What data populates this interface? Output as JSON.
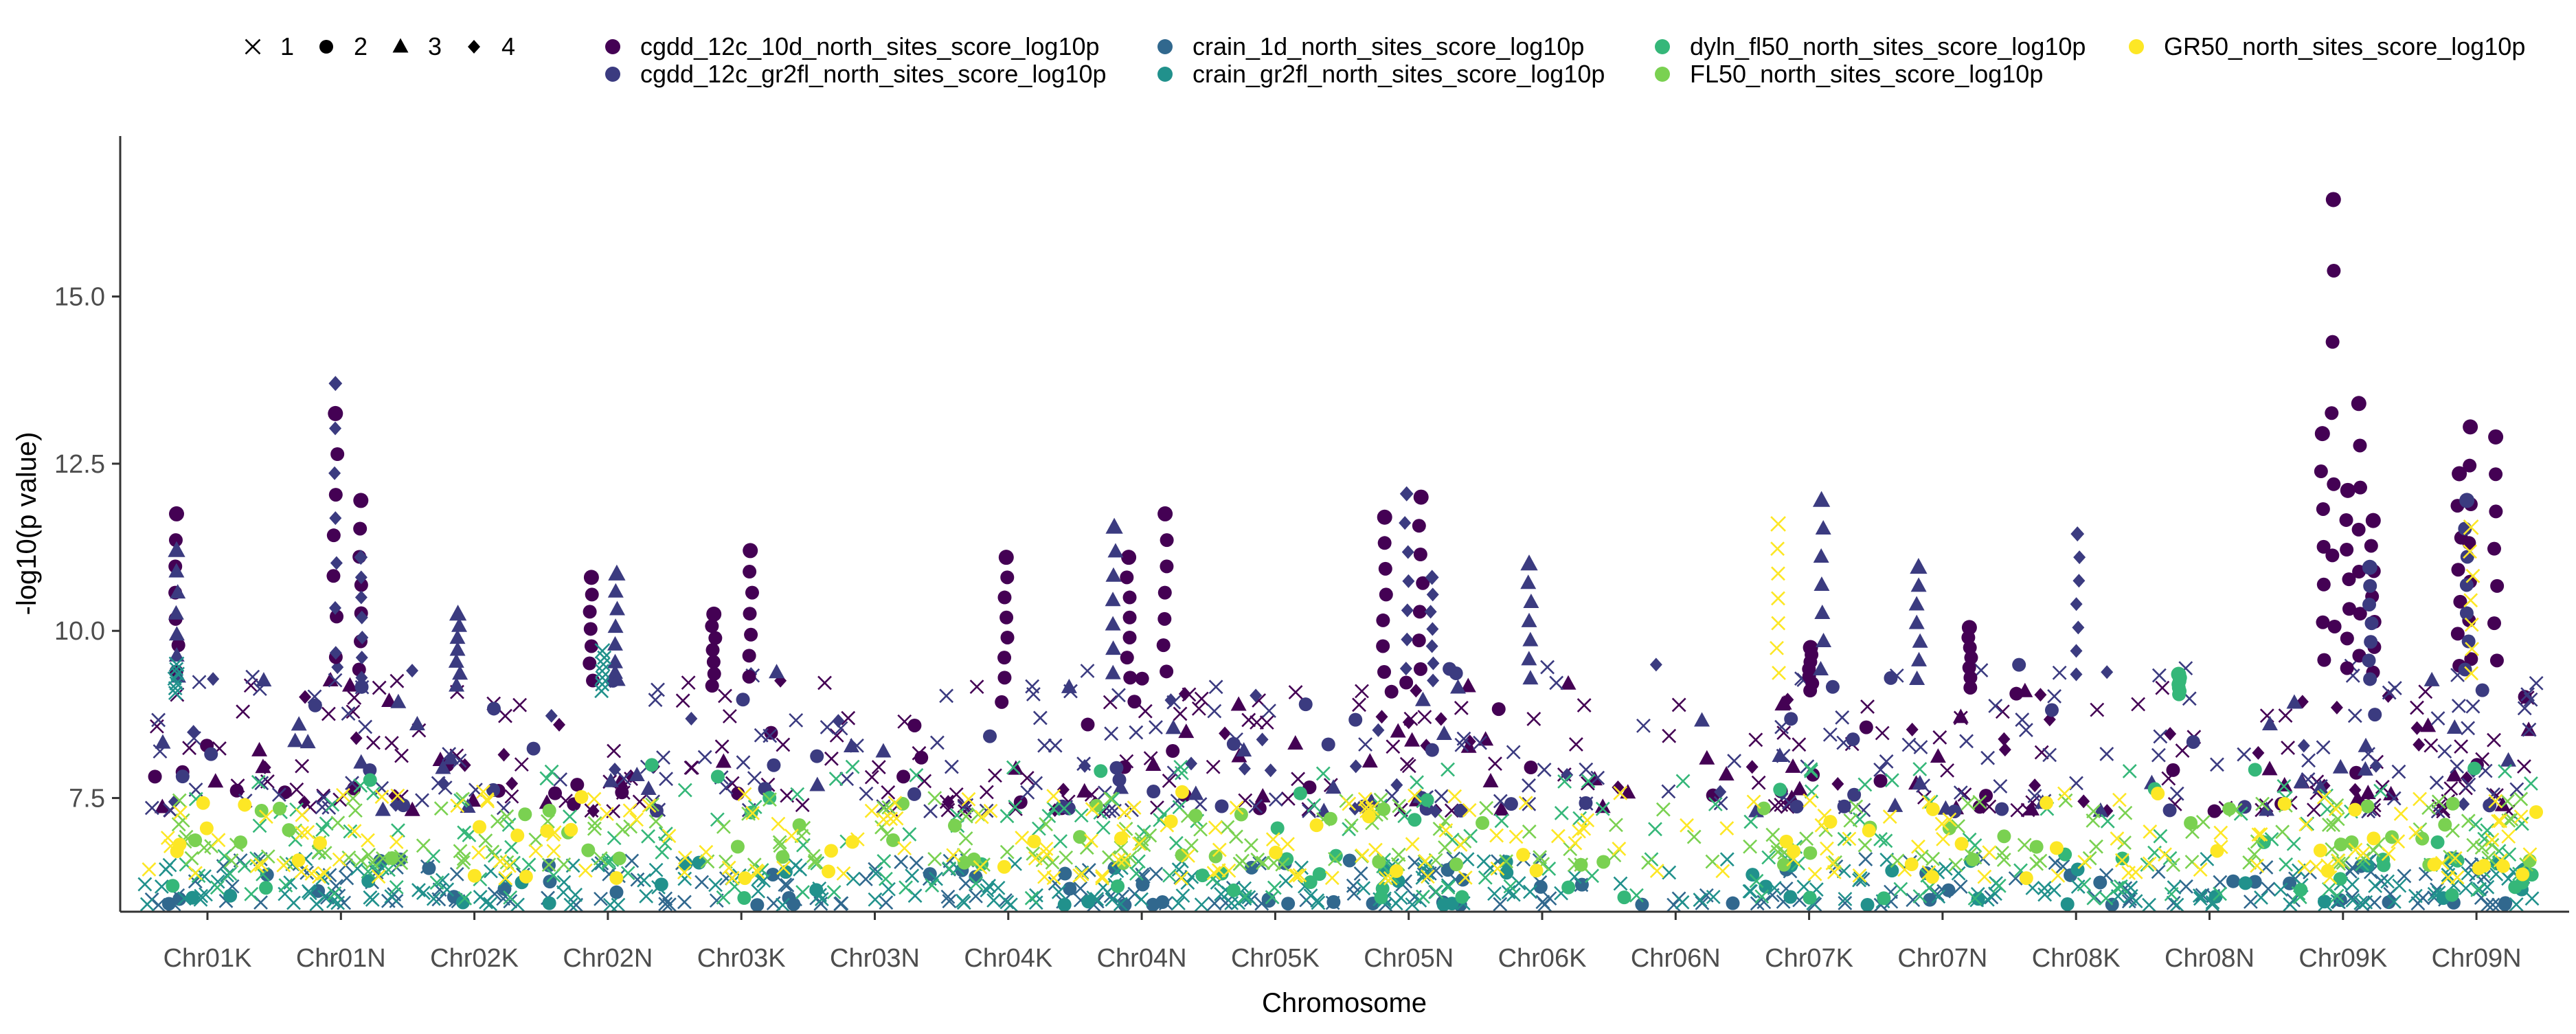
{
  "chart_data": {
    "type": "scatter",
    "title": "",
    "xlabel": "Chromosome",
    "ylabel": "-log10(p value)",
    "ylim": [
      5.8,
      17.4
    ],
    "yticks": [
      "7.5",
      "10.0",
      "12.5",
      "15.0"
    ],
    "ytick_values": [
      7.5,
      10.0,
      12.5,
      15.0
    ],
    "grid": false,
    "legend_position": "top",
    "categories": [
      "Chr01K",
      "Chr01N",
      "Chr02K",
      "Chr02N",
      "Chr03K",
      "Chr03N",
      "Chr04K",
      "Chr04N",
      "Chr05K",
      "Chr05N",
      "Chr06K",
      "Chr06N",
      "Chr07K",
      "Chr07N",
      "Chr08K",
      "Chr08N",
      "Chr09K",
      "Chr09N"
    ],
    "shape_legend": [
      {
        "label": "1",
        "shape": "cross"
      },
      {
        "label": "2",
        "shape": "circle"
      },
      {
        "label": "3",
        "shape": "triangle"
      },
      {
        "label": "4",
        "shape": "diamond"
      }
    ],
    "series": [
      {
        "name": "cgdd_12c_10d_north_sites_score_log10p",
        "color": "#440154",
        "base_range": [
          7.3,
          9.3
        ],
        "peaks": [
          {
            "chr": "Chr01K",
            "y": 11.75,
            "shape": "circle"
          },
          {
            "chr": "Chr01N",
            "y": 13.25,
            "shape": "circle"
          },
          {
            "chr": "Chr01N",
            "y": 11.95,
            "shape": "circle"
          },
          {
            "chr": "Chr02N",
            "y": 10.8,
            "shape": "circle"
          },
          {
            "chr": "Chr03K",
            "y": 11.2,
            "shape": "circle"
          },
          {
            "chr": "Chr03K",
            "y": 10.25,
            "shape": "circle"
          },
          {
            "chr": "Chr04K",
            "y": 11.1,
            "shape": "circle"
          },
          {
            "chr": "Chr04N",
            "y": 11.75,
            "shape": "circle"
          },
          {
            "chr": "Chr04N",
            "y": 11.1,
            "shape": "circle"
          },
          {
            "chr": "Chr05N",
            "y": 12.0,
            "shape": "circle"
          },
          {
            "chr": "Chr05N",
            "y": 11.7,
            "shape": "circle"
          },
          {
            "chr": "Chr07K",
            "y": 9.75,
            "shape": "circle"
          },
          {
            "chr": "Chr07N",
            "y": 10.05,
            "shape": "circle"
          },
          {
            "chr": "Chr09K",
            "y": 16.45,
            "shape": "circle"
          },
          {
            "chr": "Chr09K",
            "y": 13.4,
            "shape": "circle"
          },
          {
            "chr": "Chr09K",
            "y": 12.95,
            "shape": "circle"
          },
          {
            "chr": "Chr09K",
            "y": 12.1,
            "shape": "circle"
          },
          {
            "chr": "Chr09K",
            "y": 11.65,
            "shape": "circle"
          },
          {
            "chr": "Chr09N",
            "y": 13.05,
            "shape": "circle"
          },
          {
            "chr": "Chr09N",
            "y": 12.9,
            "shape": "circle"
          },
          {
            "chr": "Chr09N",
            "y": 12.35,
            "shape": "circle"
          }
        ]
      },
      {
        "name": "cgdd_12c_gr2fl_north_sites_score_log10p",
        "color": "#3b3b80",
        "base_range": [
          7.3,
          9.5
        ],
        "peaks": [
          {
            "chr": "Chr01K",
            "y": 11.2,
            "shape": "triangle"
          },
          {
            "chr": "Chr01N",
            "y": 13.7,
            "shape": "diamond"
          },
          {
            "chr": "Chr01N",
            "y": 11.1,
            "shape": "diamond"
          },
          {
            "chr": "Chr02K",
            "y": 10.25,
            "shape": "triangle"
          },
          {
            "chr": "Chr02N",
            "y": 10.85,
            "shape": "triangle"
          },
          {
            "chr": "Chr04N",
            "y": 11.55,
            "shape": "triangle"
          },
          {
            "chr": "Chr05N",
            "y": 12.05,
            "shape": "diamond"
          },
          {
            "chr": "Chr05N",
            "y": 10.8,
            "shape": "diamond"
          },
          {
            "chr": "Chr06K",
            "y": 11.0,
            "shape": "triangle"
          },
          {
            "chr": "Chr07K",
            "y": 11.95,
            "shape": "triangle"
          },
          {
            "chr": "Chr07N",
            "y": 10.95,
            "shape": "triangle"
          },
          {
            "chr": "Chr08K",
            "y": 11.45,
            "shape": "diamond"
          },
          {
            "chr": "Chr09K",
            "y": 10.95,
            "shape": "circle"
          },
          {
            "chr": "Chr09N",
            "y": 11.95,
            "shape": "circle"
          }
        ]
      },
      {
        "name": "crain_1d_north_sites_score_log10p",
        "color": "#31688e",
        "base_range": [
          5.9,
          6.6
        ],
        "peaks": []
      },
      {
        "name": "crain_gr2fl_north_sites_score_log10p",
        "color": "#21918c",
        "base_range": [
          5.9,
          6.6
        ],
        "peaks": [
          {
            "chr": "Chr01K",
            "y": 9.5,
            "shape": "cross"
          },
          {
            "chr": "Chr02N",
            "y": 9.7,
            "shape": "cross"
          }
        ]
      },
      {
        "name": "dyln_fl50_north_sites_score_log10p",
        "color": "#35b779",
        "base_range": [
          6.0,
          8.0
        ],
        "peaks": [
          {
            "chr": "Chr08N",
            "y": 9.35,
            "shape": "circle"
          }
        ]
      },
      {
        "name": "FL50_north_sites_score_log10p",
        "color": "#7ad151",
        "base_range": [
          6.5,
          7.5
        ],
        "peaks": []
      },
      {
        "name": "GR50_north_sites_score_log10p",
        "color": "#fde725",
        "base_range": [
          6.3,
          7.6
        ],
        "peaks": [
          {
            "chr": "Chr07K",
            "y": 11.6,
            "shape": "cross"
          },
          {
            "chr": "Chr09N",
            "y": 11.55,
            "shape": "cross"
          }
        ]
      }
    ]
  }
}
